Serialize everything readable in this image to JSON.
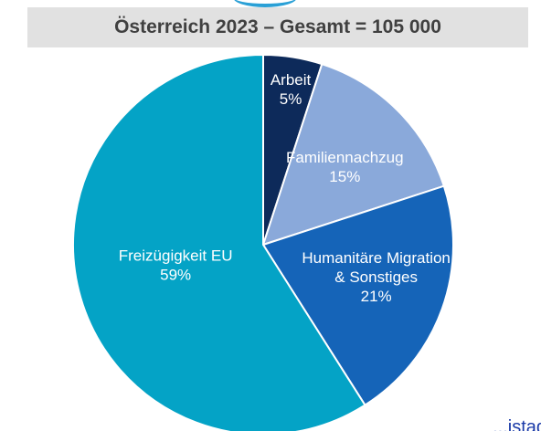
{
  "title": "Österreich 2023 – Gesamt = 105 000",
  "corner_fragment": "...istad",
  "chart_data": {
    "type": "pie",
    "title": "Österreich 2023 – Gesamt = 105 000",
    "slices": [
      {
        "label": "Arbeit",
        "value": 5,
        "value_label": "5%",
        "color": "#0d2a5a"
      },
      {
        "label": "Familiennachzug",
        "value": 15,
        "value_label": "15%",
        "color": "#8aa9da"
      },
      {
        "label": "Humanitäre Migration & Sonstiges",
        "label_lines": [
          "Humanitäre Migration",
          "& Sonstiges"
        ],
        "value": 21,
        "value_label": "21%",
        "color": "#1564b8"
      },
      {
        "label": "Freizügigkeit EU",
        "value": 59,
        "value_label": "59%",
        "color": "#04a3c6"
      }
    ],
    "start_angle_deg": 0,
    "direction": "clockwise"
  }
}
